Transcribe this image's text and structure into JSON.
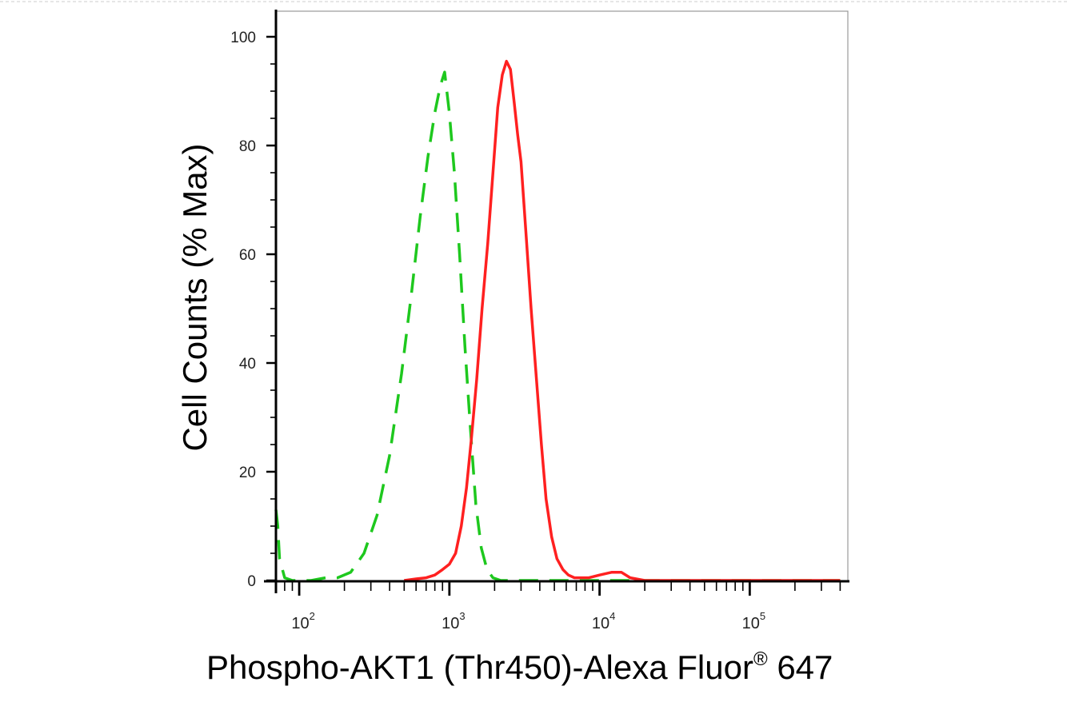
{
  "chart_data": {
    "type": "line",
    "xlabel": "Phospho-AKT1 (Thr450)-Alexa Fluor",
    "xlabel_sup": "®",
    "xlabel_suffix": " 647",
    "ylabel": "Cell Counts (% Max)",
    "x_scale": "log",
    "xlim": [
      70,
      450000
    ],
    "ylim": [
      0,
      100
    ],
    "y_ticks": [
      0,
      20,
      40,
      60,
      80,
      100
    ],
    "y_tick_labels": [
      "0",
      "20",
      "40",
      "60",
      "80",
      "100"
    ],
    "x_ticks": [
      100,
      1000,
      10000,
      100000
    ],
    "x_tick_labels": [
      {
        "base": "10",
        "exp": "2"
      },
      {
        "base": "10",
        "exp": "3"
      },
      {
        "base": "10",
        "exp": "4"
      },
      {
        "base": "10",
        "exp": "5"
      }
    ],
    "grid": false,
    "series": [
      {
        "color": "#1ec81e",
        "style": "dashed",
        "x": [
          70,
          72,
          74,
          80,
          90,
          100,
          120,
          150,
          180,
          220,
          270,
          330,
          400,
          480,
          560,
          640,
          720,
          800,
          870,
          930,
          1000,
          1080,
          1170,
          1270,
          1380,
          1500,
          1630,
          1780,
          1950,
          2200,
          3000,
          5000,
          10000,
          20000,
          50000,
          100000,
          200000,
          400000
        ],
        "y": [
          13,
          10,
          4,
          0.5,
          0,
          0,
          0,
          0.5,
          0.5,
          1.5,
          5,
          12,
          23,
          38,
          53,
          67,
          78,
          86,
          91,
          93.5,
          86,
          75,
          60,
          43,
          28,
          14,
          6,
          2,
          0.5,
          0,
          0,
          0,
          0,
          0,
          0,
          0,
          0,
          0
        ]
      },
      {
        "color": "#ff2020",
        "style": "solid",
        "x": [
          500,
          600,
          700,
          800,
          900,
          1000,
          1100,
          1200,
          1300,
          1400,
          1520,
          1650,
          1800,
          1950,
          2100,
          2250,
          2400,
          2550,
          2700,
          2850,
          3000,
          3250,
          3500,
          3800,
          4100,
          4400,
          4800,
          5200,
          5700,
          6200,
          6800,
          7500,
          8500,
          10000,
          12000,
          14000,
          16000,
          20000,
          40000,
          100000,
          400000
        ],
        "y": [
          0,
          0.3,
          0.5,
          1,
          2,
          3,
          5,
          10,
          17,
          26,
          37,
          50,
          62,
          75,
          87,
          93,
          95.5,
          94,
          88,
          82,
          77,
          63,
          50,
          37,
          25,
          15,
          8,
          4,
          2,
          1,
          0.5,
          0.5,
          0.5,
          1,
          1.5,
          1.5,
          0.5,
          0,
          0,
          0,
          0
        ]
      }
    ]
  }
}
